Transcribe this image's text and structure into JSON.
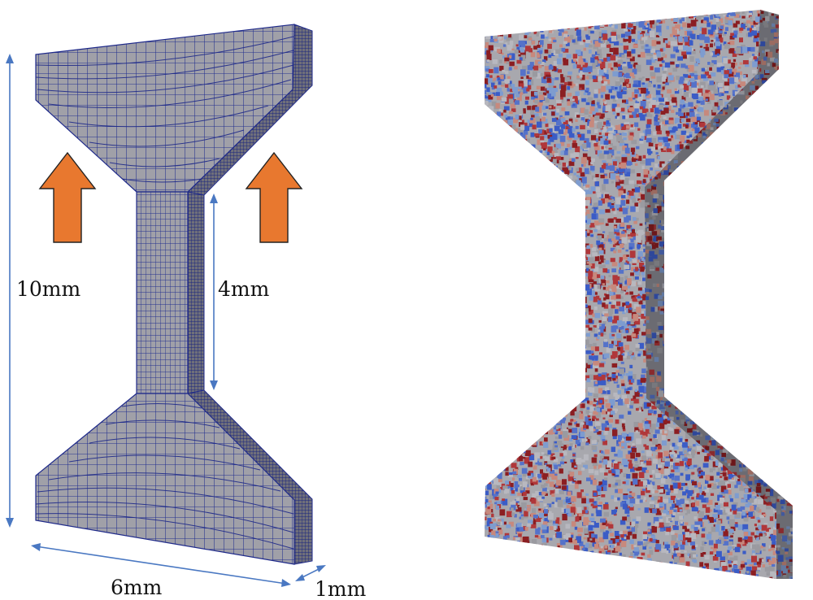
{
  "dimensions": {
    "total_height": "10mm",
    "gauge_length": "4mm",
    "width": "6mm",
    "thickness": "1mm"
  },
  "colors": {
    "mesh_fill": "#9e9ea6",
    "mesh_line": "#1f2a8a",
    "side_fill": "#7d7d86",
    "arrow_fill": "#e8782f",
    "arrow_stroke": "#222222",
    "dimension_line": "#4a78c2",
    "grain_palette": [
      "#9a9aa0",
      "#3b5cc6",
      "#b0373a",
      "#c7897d",
      "#7e9ccf",
      "#b8b8bf",
      "#8b1e22",
      "#5572c9"
    ]
  },
  "panels": [
    {
      "name": "mesh-model",
      "style": "hexahedral-mesh",
      "has_load_arrows": true
    },
    {
      "name": "grain-microstructure",
      "style": "polycrystal-grains",
      "has_load_arrows": false
    }
  ]
}
